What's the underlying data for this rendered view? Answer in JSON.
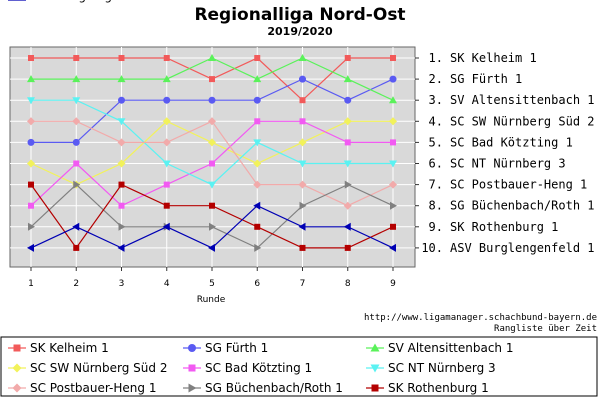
{
  "chart_data": {
    "type": "line",
    "title": "Regionalliga Nord-Ost",
    "subtitle": "2019/2020",
    "xlabel": "Runde",
    "x": [
      1,
      2,
      3,
      4,
      5,
      6,
      7,
      8,
      9
    ],
    "y_inverted": true,
    "ylim": [
      1,
      10
    ],
    "grid": true,
    "legend_position": "bottom",
    "right_labels": [
      "1. SK Kelheim 1",
      "2. SG Fürth 1",
      "3. SV Altensittenbach 1",
      "4. SC SW Nürnberg Süd 2",
      "5. SC Bad Kötzting 1",
      "6. SC NT Nürnberg 3",
      "7. SC Postbauer-Heng 1",
      "8. SG Büchenbach/Roth 1",
      "9. SK Rothenburg 1",
      "10. ASV Burglengenfeld 1"
    ],
    "source_url": "http://www.ligamanager.schachbund-bayern.de",
    "source_caption": "Rangliste über Zeit",
    "series": [
      {
        "name": "SK Kelheim 1",
        "color": "#f25a5a",
        "marker": "square",
        "values": [
          1,
          1,
          1,
          1,
          2,
          1,
          3,
          1,
          1
        ]
      },
      {
        "name": "SG Fürth 1",
        "color": "#5a5af2",
        "marker": "circle",
        "values": [
          5,
          5,
          3,
          3,
          3,
          3,
          2,
          3,
          2
        ]
      },
      {
        "name": "SV Altensittenbach 1",
        "color": "#5af25a",
        "marker": "triangle-up",
        "values": [
          2,
          2,
          2,
          2,
          1,
          2,
          1,
          2,
          3
        ]
      },
      {
        "name": "SC SW Nürnberg Süd 2",
        "color": "#f2f25a",
        "marker": "diamond",
        "values": [
          6,
          7,
          6,
          4,
          5,
          6,
          5,
          4,
          4
        ]
      },
      {
        "name": "SC Bad Kötzting 1",
        "color": "#f25af2",
        "marker": "square",
        "values": [
          8,
          6,
          8,
          7,
          6,
          4,
          4,
          5,
          5
        ]
      },
      {
        "name": "SC NT Nürnberg 3",
        "color": "#5af2f2",
        "marker": "triangle-down",
        "values": [
          3,
          3,
          4,
          6,
          7,
          5,
          6,
          6,
          6
        ]
      },
      {
        "name": "SC Postbauer-Heng 1",
        "color": "#f2aaaa",
        "marker": "diamond",
        "values": [
          4,
          4,
          5,
          5,
          4,
          7,
          7,
          8,
          7
        ]
      },
      {
        "name": "SG Büchenbach/Roth 1",
        "color": "#808080",
        "marker": "triangle-right",
        "values": [
          9,
          7,
          9,
          9,
          9,
          10,
          8,
          7,
          8
        ]
      },
      {
        "name": "SK Rothenburg 1",
        "color": "#b40000",
        "marker": "square",
        "values": [
          7,
          10,
          7,
          8,
          8,
          9,
          10,
          10,
          9
        ]
      },
      {
        "name": "ASV Burglengenfeld 1",
        "color": "#0000b4",
        "marker": "triangle-left",
        "values": [
          10,
          9,
          10,
          9,
          10,
          8,
          9,
          9,
          10
        ]
      }
    ]
  }
}
